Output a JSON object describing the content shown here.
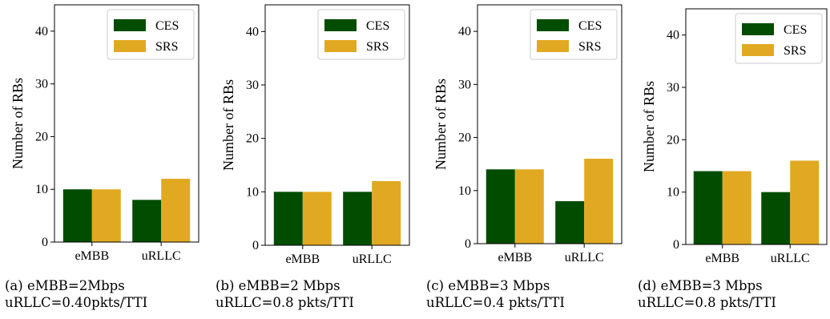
{
  "colors": {
    "CES": "#004d00",
    "SRS": "#e1a922",
    "axis": "#000000"
  },
  "chart_data": [
    {
      "type": "bar",
      "categories": [
        "eMBB",
        "uRLLC"
      ],
      "series": [
        {
          "name": "CES",
          "values": [
            10,
            8
          ]
        },
        {
          "name": "SRS",
          "values": [
            10,
            12
          ]
        }
      ],
      "ylabel": "Number of RBs",
      "ylim": [
        0,
        45
      ],
      "yticks": [
        0,
        10,
        20,
        30,
        40
      ],
      "legend": "top-right",
      "grid": false,
      "caption_lines": [
        "(a) eMBB=2Mbps",
        "uRLLC=0.40pkts/TTI"
      ]
    },
    {
      "type": "bar",
      "categories": [
        "eMBB",
        "uRLLC"
      ],
      "series": [
        {
          "name": "CES",
          "values": [
            10,
            10
          ]
        },
        {
          "name": "SRS",
          "values": [
            10,
            12
          ]
        }
      ],
      "ylabel": "Number of RBs",
      "ylim": [
        0,
        45
      ],
      "yticks": [
        0,
        10,
        20,
        30,
        40
      ],
      "legend": "top-right",
      "grid": false,
      "caption_lines": [
        "(b) eMBB=2 Mbps",
        "uRLLC=0.8 pkts/TTI"
      ]
    },
    {
      "type": "bar",
      "categories": [
        "eMBB",
        "uRLLC"
      ],
      "series": [
        {
          "name": "CES",
          "values": [
            14,
            8
          ]
        },
        {
          "name": "SRS",
          "values": [
            14,
            16
          ]
        }
      ],
      "ylabel": "Number of RBs",
      "ylim": [
        0,
        45
      ],
      "yticks": [
        0,
        10,
        20,
        30,
        40
      ],
      "legend": "top-right",
      "grid": false,
      "caption_lines": [
        "(c) eMBB=3 Mbps",
        "uRLLC=0.4 pkts/TTI"
      ]
    },
    {
      "type": "bar",
      "categories": [
        "eMBB",
        "uRLLC"
      ],
      "series": [
        {
          "name": "CES",
          "values": [
            14,
            10
          ]
        },
        {
          "name": "SRS",
          "values": [
            14,
            16
          ]
        }
      ],
      "ylabel": "Number of RBs",
      "ylim": [
        0,
        45
      ],
      "yticks": [
        0,
        10,
        20,
        30,
        40
      ],
      "legend": "top-right",
      "grid": false,
      "caption_lines": [
        "(d) eMBB=3 Mbps",
        "uRLLC=0.8 pkts/TTI"
      ]
    }
  ]
}
